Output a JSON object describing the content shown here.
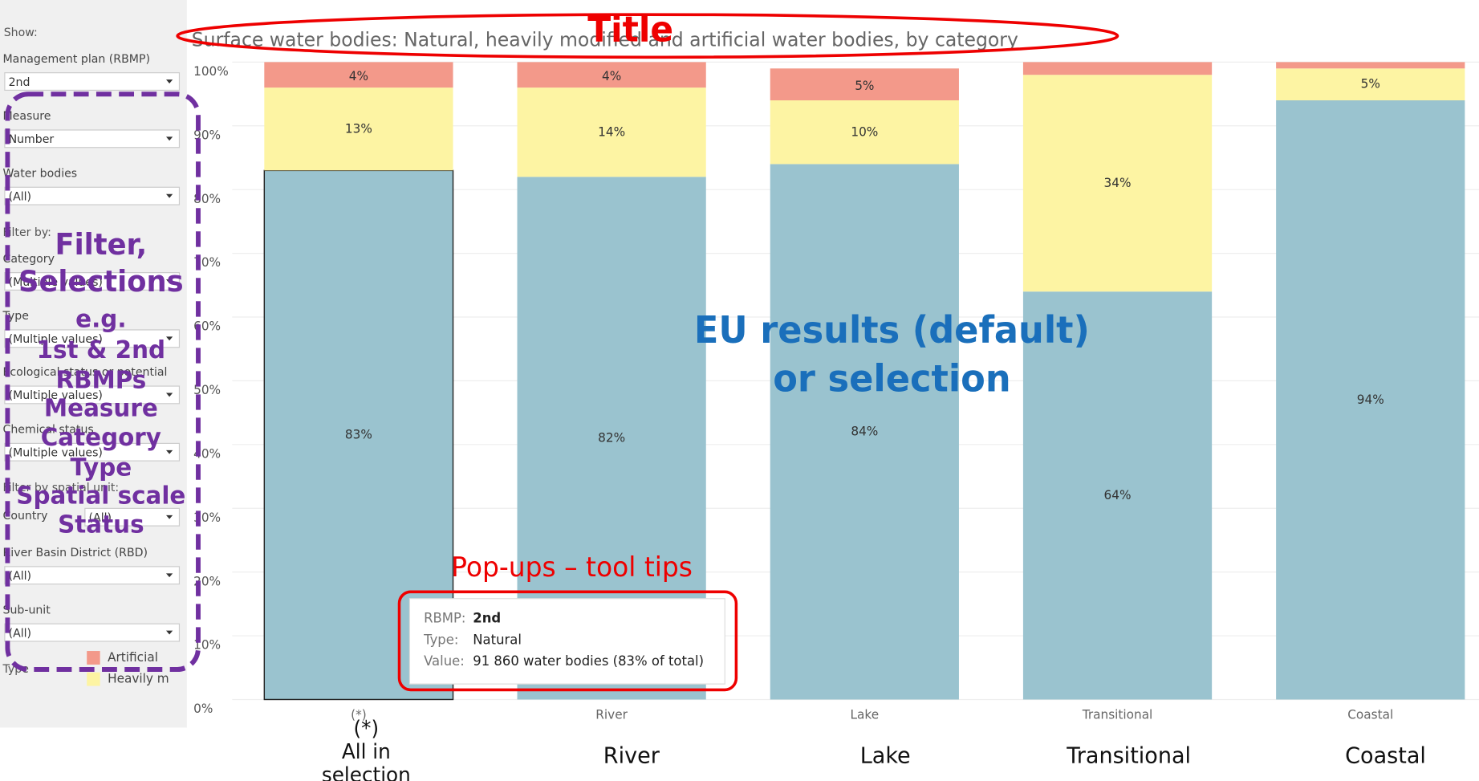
{
  "sidebar": {
    "show": "Show:",
    "filters": [
      {
        "label": "Management plan (RBMP)",
        "value": "2nd"
      },
      {
        "label": "Measure",
        "value": "Number"
      },
      {
        "label": "Water bodies",
        "value": "(All)"
      },
      {
        "label": "Category",
        "value": "(Multiple values)"
      },
      {
        "label": "Type",
        "value": "(Multiple values)"
      },
      {
        "label": "Ecological status or potential",
        "value": "(Multiple values)"
      },
      {
        "label": "Chemical status",
        "value": "(Multiple values)"
      },
      {
        "label": "Country",
        "value": "(All)"
      },
      {
        "label": "River Basin District (RBD)",
        "value": "(All)"
      },
      {
        "label": "Sub-unit",
        "value": "(All)"
      }
    ],
    "filter_by": "Filter by:",
    "filter_by_spatial": "Filter by spatial unit:",
    "legend_title": "Type"
  },
  "chart_data": {
    "type": "stacked_bar",
    "title": "Surface water bodies: Natural, heavily modified and artificial water bodies, by category",
    "categories": [
      "(*)",
      "River",
      "Lake",
      "Transitional",
      "Coastal"
    ],
    "series": [
      {
        "name": "Natural",
        "color": "#9ac3cf",
        "values": [
          83,
          82,
          84,
          64,
          94
        ],
        "value_labels": [
          "83%",
          "82%",
          "84%",
          "64%",
          "94%"
        ]
      },
      {
        "name": "Heavily m",
        "color": "#fdf4a3",
        "values": [
          13,
          14,
          10,
          34,
          5
        ],
        "value_labels": [
          "13%",
          "14%",
          "10%",
          "34%",
          "5%"
        ]
      },
      {
        "name": "Artificial",
        "color": "#f3998a",
        "values": [
          4,
          4,
          5,
          2,
          1
        ],
        "value_labels": [
          "4%",
          "4%",
          "5%",
          null,
          null
        ]
      }
    ],
    "ylim": [
      0,
      100
    ],
    "yticks": [
      {
        "value": 0,
        "label": "0%"
      },
      {
        "value": 10,
        "label": "10%"
      },
      {
        "value": 20,
        "label": "20%"
      },
      {
        "value": 30,
        "label": "30%"
      },
      {
        "value": 40,
        "label": "40%"
      },
      {
        "value": 50,
        "label": "50%"
      },
      {
        "value": 60,
        "label": "60%"
      },
      {
        "value": 70,
        "label": "70%"
      },
      {
        "value": 80,
        "label": "80%"
      },
      {
        "value": 90,
        "label": "90%"
      },
      {
        "value": 100,
        "label": "100%"
      }
    ],
    "grid": true,
    "tooltip": {
      "rows": [
        {
          "label": "RBMP:",
          "value": "2nd"
        },
        {
          "label": "Type:",
          "value": "Natural"
        },
        {
          "label": "Value:",
          "value": "91 860 water bodies (83% of total)"
        }
      ]
    }
  },
  "annotations": {
    "title": "Title",
    "filters": [
      "Filter,",
      "Selections",
      "e.g.",
      "1st & 2nd",
      "RBMPs",
      "Measure",
      "Category",
      "Type",
      "Spatial scale",
      "Status"
    ],
    "results": [
      "EU results (default)",
      "or selection"
    ],
    "popups": "Pop-ups – tool tips",
    "category_captions": [
      [
        "(*)",
        "All in",
        "selection"
      ],
      [
        "River"
      ],
      [
        "Lake"
      ],
      [
        "Transitional"
      ],
      [
        "Coastal"
      ]
    ]
  }
}
